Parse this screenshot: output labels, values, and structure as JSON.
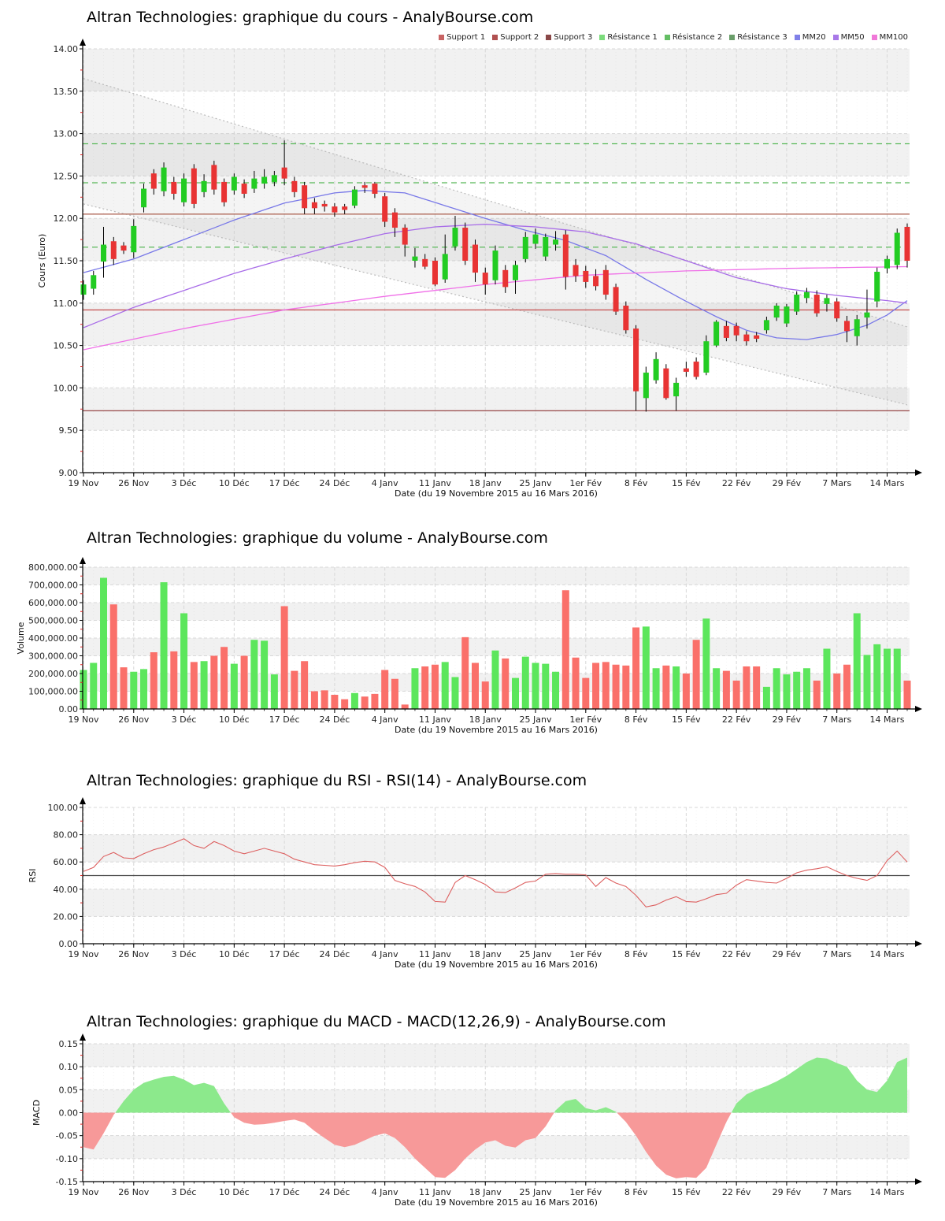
{
  "page": {
    "background": "#ffffff"
  },
  "legend": {
    "items": [
      {
        "label": "Support 1",
        "color": "#c86464"
      },
      {
        "label": "Support 2",
        "color": "#b05050"
      },
      {
        "label": "Support 3",
        "color": "#8a4848"
      },
      {
        "label": "Résistance 1",
        "color": "#7cdc7c"
      },
      {
        "label": "Résistance 2",
        "color": "#64be64"
      },
      {
        "label": "Résistance 3",
        "color": "#6a9e6a"
      },
      {
        "label": "MM20",
        "color": "#8080e8"
      },
      {
        "label": "MM50",
        "color": "#a878e8"
      },
      {
        "label": "MM100",
        "color": "#f078d8"
      }
    ]
  },
  "colors": {
    "candle_up": "#22cc22",
    "candle_down": "#e83333",
    "wick": "#000000",
    "vol_up": "#5ce65c",
    "vol_down": "#fa706a",
    "macd_pos": "#8ce98c",
    "macd_neg": "#f79999",
    "rsi_line": "#dd6060",
    "rsi_midline": "#444444",
    "mm20": "#7878e8",
    "mm50": "#a86ce8",
    "mm100": "#f070e8",
    "support_lines": [
      "#b06858",
      "#c85a5a",
      "#a05858"
    ],
    "resistance_line": "#58b858",
    "grid": "#d8d8d8",
    "stripe": "#f1f1f1",
    "channel_line": "#bbbbbb",
    "channel_fill": "rgba(170,170,170,0.13)",
    "minor_tick": "#dd2222",
    "axis": "#000000",
    "tick_text": "#222222"
  },
  "x_axis": {
    "caption": "Date (du 19 Novembre 2015 au 16 Mars 2016)",
    "tick_labels": [
      "19 Nov",
      "26 Nov",
      "3 Déc",
      "10 Déc",
      "17 Déc",
      "24 Déc",
      "4 Janv",
      "11 Janv",
      "18 Janv",
      "25 Janv",
      "1er Fév",
      "8 Fév",
      "15 Fév",
      "22 Fév",
      "29 Fév",
      "7 Mars",
      "14 Mars"
    ],
    "tick_indices": [
      0,
      5,
      10,
      15,
      20,
      25,
      30,
      35,
      40,
      45,
      50,
      55,
      60,
      65,
      70,
      75,
      80
    ],
    "n_points": 83
  },
  "chart_data": [
    {
      "type": "candlestick",
      "title": "Altran Technologies: graphique du cours - AnalyBourse.com",
      "ylabel": "Cours (Euro)",
      "xlabel": "Date (du 19 Novembre 2015 au 16 Mars 2016)",
      "ylim": [
        9,
        14
      ],
      "y_ticks": [
        14,
        13.5,
        13,
        12.5,
        12,
        11.5,
        11,
        10.5,
        10,
        9.5,
        9
      ],
      "y_tick_labels": [
        "14.00",
        "13.50",
        "13.00",
        "12.50",
        "12.00",
        "11.50",
        "11.00",
        "10.50",
        "10.00",
        "9.50",
        "9.00"
      ],
      "y_minor_step": 0.25,
      "stripes": [
        [
          9.5,
          10
        ],
        [
          10.5,
          11
        ],
        [
          11.5,
          12
        ],
        [
          12.5,
          13
        ],
        [
          13.5,
          14
        ]
      ],
      "open": [
        11.1,
        11.17,
        11.49,
        11.73,
        11.68,
        11.6,
        12.13,
        12.53,
        12.32,
        12.43,
        12.19,
        12.59,
        12.31,
        12.63,
        12.43,
        12.33,
        12.41,
        12.35,
        12.41,
        12.43,
        12.6,
        12.44,
        12.39,
        12.19,
        12.17,
        12.14,
        12.14,
        12.15,
        12.39,
        12.41,
        12.26,
        12.07,
        11.89,
        11.5,
        11.52,
        11.5,
        11.28,
        11.67,
        11.89,
        11.69,
        11.36,
        11.27,
        11.39,
        11.27,
        11.52,
        11.7,
        11.55,
        11.69,
        11.81,
        11.45,
        11.38,
        11.32,
        11.39,
        11.19,
        10.97,
        10.7,
        9.88,
        10.09,
        10.23,
        9.9,
        10.23,
        10.31,
        10.18,
        10.5,
        10.73,
        10.73,
        10.63,
        10.62,
        10.68,
        10.83,
        10.76,
        10.9,
        11.06,
        11.1,
        10.99,
        11.02,
        10.79,
        10.61,
        10.83,
        11.02,
        11.41,
        11.45,
        11.9
      ],
      "high": [
        11.27,
        11.38,
        11.9,
        11.78,
        11.72,
        11.99,
        12.41,
        12.58,
        12.66,
        12.49,
        12.53,
        12.64,
        12.52,
        12.68,
        12.47,
        12.53,
        12.46,
        12.56,
        12.58,
        12.56,
        12.92,
        12.49,
        12.43,
        12.24,
        12.21,
        12.18,
        12.17,
        12.38,
        12.43,
        12.43,
        12.3,
        12.12,
        11.93,
        11.65,
        11.58,
        11.54,
        11.81,
        12.03,
        11.95,
        11.75,
        11.42,
        11.68,
        11.45,
        11.5,
        11.84,
        11.88,
        11.82,
        11.85,
        11.86,
        11.52,
        11.44,
        11.4,
        11.45,
        11.23,
        11.02,
        10.74,
        10.25,
        10.42,
        10.28,
        10.12,
        10.31,
        10.36,
        10.62,
        10.8,
        10.79,
        10.77,
        10.67,
        10.66,
        10.84,
        11.0,
        10.99,
        11.14,
        11.18,
        11.15,
        11.1,
        11.06,
        10.85,
        10.86,
        11.16,
        11.42,
        11.56,
        11.88,
        11.94
      ],
      "low": [
        11.04,
        11.1,
        11.3,
        11.45,
        11.58,
        11.53,
        12.07,
        12.28,
        12.26,
        12.22,
        12.14,
        12.12,
        12.25,
        12.28,
        12.14,
        12.28,
        12.24,
        12.3,
        12.35,
        12.38,
        12.39,
        12.25,
        12.05,
        12.05,
        12.08,
        12.02,
        12.05,
        12.12,
        12.3,
        12.24,
        11.9,
        11.78,
        11.55,
        11.42,
        11.4,
        11.2,
        11.24,
        11.62,
        11.45,
        11.25,
        11.1,
        11.22,
        11.12,
        11.11,
        11.48,
        11.64,
        11.5,
        11.62,
        11.16,
        11.25,
        11.18,
        11.15,
        11.04,
        10.86,
        10.64,
        9.73,
        9.72,
        10.05,
        9.86,
        9.73,
        10.13,
        10.1,
        10.15,
        10.48,
        10.55,
        10.55,
        10.5,
        10.54,
        10.64,
        10.79,
        10.72,
        10.86,
        11.0,
        10.84,
        10.9,
        10.78,
        10.54,
        10.5,
        10.7,
        10.95,
        11.35,
        11.4,
        11.42
      ],
      "close": [
        11.22,
        11.33,
        11.69,
        11.52,
        11.62,
        11.91,
        12.35,
        12.35,
        12.6,
        12.29,
        12.47,
        12.17,
        12.44,
        12.34,
        12.19,
        12.49,
        12.29,
        12.47,
        12.49,
        12.51,
        12.47,
        12.31,
        12.12,
        12.12,
        12.14,
        12.07,
        12.1,
        12.34,
        12.36,
        12.29,
        11.96,
        11.89,
        11.69,
        11.55,
        11.43,
        11.22,
        11.58,
        11.89,
        11.5,
        11.36,
        11.22,
        11.62,
        11.19,
        11.45,
        11.78,
        11.81,
        11.78,
        11.75,
        11.31,
        11.32,
        11.25,
        11.2,
        11.1,
        10.9,
        10.68,
        9.96,
        10.18,
        10.34,
        9.88,
        10.06,
        10.19,
        10.13,
        10.55,
        10.78,
        10.59,
        10.62,
        10.55,
        10.58,
        10.8,
        10.97,
        10.96,
        11.1,
        11.13,
        10.88,
        11.06,
        10.82,
        10.67,
        10.81,
        10.89,
        11.37,
        11.52,
        11.83,
        11.5
      ],
      "supports": [
        12.05,
        10.92,
        9.73
      ],
      "resistances": [
        12.88,
        12.42,
        11.66
      ],
      "mm20_points": [
        [
          0,
          11.36
        ],
        [
          5,
          11.52
        ],
        [
          10,
          11.75
        ],
        [
          15,
          11.98
        ],
        [
          20,
          12.18
        ],
        [
          25,
          12.3
        ],
        [
          28,
          12.33
        ],
        [
          32,
          12.3
        ],
        [
          36,
          12.15
        ],
        [
          40,
          12.0
        ],
        [
          44,
          11.86
        ],
        [
          48,
          11.74
        ],
        [
          52,
          11.56
        ],
        [
          56,
          11.28
        ],
        [
          60,
          11.02
        ],
        [
          63,
          10.84
        ],
        [
          66,
          10.68
        ],
        [
          69,
          10.59
        ],
        [
          72,
          10.57
        ],
        [
          75,
          10.63
        ],
        [
          78,
          10.74
        ],
        [
          80,
          10.86
        ],
        [
          82,
          11.03
        ]
      ],
      "mm50_points": [
        [
          0,
          10.71
        ],
        [
          5,
          10.95
        ],
        [
          10,
          11.15
        ],
        [
          15,
          11.35
        ],
        [
          20,
          11.52
        ],
        [
          25,
          11.68
        ],
        [
          30,
          11.82
        ],
        [
          35,
          11.9
        ],
        [
          40,
          11.93
        ],
        [
          45,
          11.9
        ],
        [
          50,
          11.84
        ],
        [
          55,
          11.7
        ],
        [
          60,
          11.5
        ],
        [
          65,
          11.3
        ],
        [
          70,
          11.17
        ],
        [
          75,
          11.09
        ],
        [
          80,
          11.03
        ],
        [
          82,
          11.0
        ]
      ],
      "mm100_points": [
        [
          0,
          10.45
        ],
        [
          10,
          10.7
        ],
        [
          20,
          10.92
        ],
        [
          30,
          11.08
        ],
        [
          40,
          11.22
        ],
        [
          50,
          11.33
        ],
        [
          60,
          11.38
        ],
        [
          70,
          11.41
        ],
        [
          82,
          11.43
        ]
      ],
      "channel": {
        "upper": [
          [
            0,
            13.65
          ],
          [
            82,
            10.72
          ]
        ],
        "lower": [
          [
            0,
            12.17
          ],
          [
            82,
            9.8
          ]
        ]
      }
    },
    {
      "type": "bar",
      "title": "Altran Technologies: graphique du volume - AnalyBourse.com",
      "ylabel": "Volume",
      "xlabel": "Date (du 19 Novembre 2015 au 16 Mars 2016)",
      "ylim": [
        0,
        800000
      ],
      "y_ticks": [
        800000,
        700000,
        600000,
        500000,
        400000,
        300000,
        200000,
        100000,
        0
      ],
      "y_tick_labels": [
        "800,000.00",
        "700,000.00",
        "600,000.00",
        "500,000.00",
        "400,000.00",
        "300,000.00",
        "200,000.00",
        "100,000.00",
        "0.00"
      ],
      "y_minor_step": 50000,
      "stripes": [
        [
          100000,
          200000
        ],
        [
          300000,
          400000
        ],
        [
          500000,
          600000
        ],
        [
          700000,
          800000
        ]
      ],
      "values": [
        220000,
        260000,
        740000,
        590000,
        235000,
        210000,
        225000,
        320000,
        715000,
        325000,
        540000,
        265000,
        270000,
        300000,
        350000,
        255000,
        300000,
        390000,
        385000,
        195000,
        580000,
        215000,
        270000,
        100000,
        105000,
        80000,
        55000,
        90000,
        70000,
        85000,
        220000,
        170000,
        25000,
        230000,
        240000,
        250000,
        265000,
        180000,
        405000,
        260000,
        155000,
        330000,
        285000,
        175000,
        295000,
        260000,
        255000,
        210000,
        670000,
        290000,
        175000,
        260000,
        265000,
        250000,
        245000,
        460000,
        465000,
        230000,
        245000,
        240000,
        200000,
        390000,
        510000,
        230000,
        215000,
        160000,
        240000,
        240000,
        125000,
        230000,
        195000,
        210000,
        230000,
        160000,
        340000,
        200000,
        250000,
        540000,
        305000,
        365000,
        340000,
        340000,
        160000
      ]
    },
    {
      "type": "line",
      "title": "Altran Technologies: graphique du RSI - RSI(14) - AnalyBourse.com",
      "ylabel": "RSI",
      "xlabel": "Date (du 19 Novembre 2015 au 16 Mars 2016)",
      "ylim": [
        0,
        100
      ],
      "y_ticks": [
        100,
        80,
        60,
        40,
        20,
        0
      ],
      "y_tick_labels": [
        "100.00",
        "80.00",
        "60.00",
        "40.00",
        "20.00",
        "0.00"
      ],
      "y_minor_step": 10,
      "stripes": [
        [
          20,
          40
        ],
        [
          60,
          80
        ]
      ],
      "midline": 50,
      "values": [
        53,
        56,
        64,
        67,
        63,
        62.5,
        66,
        69,
        71,
        74,
        77,
        72,
        70,
        75,
        72,
        68,
        66,
        68,
        70,
        68,
        66,
        62,
        60,
        58,
        57.5,
        57,
        58,
        59.5,
        60.5,
        60,
        56,
        46.5,
        44,
        42,
        38,
        31,
        30.5,
        45,
        50,
        47,
        43.5,
        38,
        37.5,
        41,
        45,
        46,
        51,
        51.5,
        51,
        51,
        50.5,
        42,
        48.5,
        44.5,
        42,
        35.5,
        27,
        28.5,
        32,
        34.5,
        31,
        30.5,
        33,
        36,
        37,
        43,
        47,
        46,
        45,
        44.5,
        48,
        52,
        54,
        55,
        56.5,
        53,
        50,
        48,
        46.5,
        50,
        61,
        68,
        60
      ]
    },
    {
      "type": "area",
      "title": "Altran Technologies: graphique du MACD - MACD(12,26,9) - AnalyBourse.com",
      "ylabel": "MACD",
      "xlabel": "Date (du 19 Novembre 2015 au 16 Mars 2016)",
      "ylim": [
        -0.15,
        0.15
      ],
      "y_ticks": [
        0.15,
        0.1,
        0.05,
        0,
        -0.05,
        -0.1,
        -0.15
      ],
      "y_tick_labels": [
        "0.15",
        "0.10",
        "0.05",
        "0.00",
        "-0.05",
        "-0.10",
        "-0.15"
      ],
      "y_minor_step": 0.025,
      "stripes": [
        [
          -0.1,
          -0.05
        ],
        [
          0,
          0.05
        ],
        [
          0.1,
          0.15
        ]
      ],
      "values": [
        -0.075,
        -0.08,
        -0.045,
        -0.005,
        0.025,
        0.05,
        0.065,
        0.072,
        0.078,
        0.08,
        0.072,
        0.06,
        0.065,
        0.058,
        0.02,
        -0.01,
        -0.022,
        -0.026,
        -0.025,
        -0.022,
        -0.018,
        -0.015,
        -0.022,
        -0.04,
        -0.055,
        -0.07,
        -0.075,
        -0.07,
        -0.06,
        -0.05,
        -0.045,
        -0.055,
        -0.075,
        -0.1,
        -0.12,
        -0.14,
        -0.142,
        -0.125,
        -0.1,
        -0.08,
        -0.065,
        -0.06,
        -0.072,
        -0.076,
        -0.06,
        -0.055,
        -0.03,
        0.005,
        0.025,
        0.03,
        0.01,
        0.005,
        0.012,
        0.002,
        -0.02,
        -0.05,
        -0.085,
        -0.115,
        -0.135,
        -0.143,
        -0.14,
        -0.142,
        -0.12,
        -0.07,
        -0.02,
        0.02,
        0.04,
        0.05,
        0.058,
        0.068,
        0.08,
        0.095,
        0.11,
        0.12,
        0.118,
        0.108,
        0.1,
        0.07,
        0.05,
        0.045,
        0.07,
        0.11,
        0.12
      ]
    }
  ]
}
